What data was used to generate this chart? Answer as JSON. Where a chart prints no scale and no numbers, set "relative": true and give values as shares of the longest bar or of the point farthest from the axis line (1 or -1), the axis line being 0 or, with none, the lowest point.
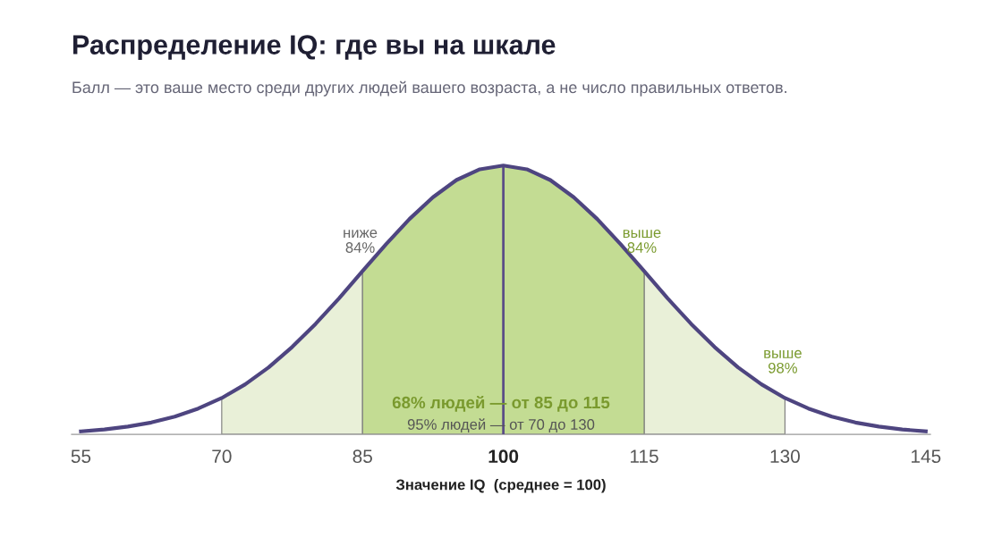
{
  "chart_data": {
    "type": "line",
    "relative": true,
    "title": "Распределение IQ: где вы на шкале",
    "subtitle": "Балл — это ваше место среди других людей вашего возраста, а не число правильных ответов.",
    "xlabel": "Значение IQ  (среднее = 100)",
    "x": [
      55,
      57.5,
      60,
      62.5,
      65,
      67.5,
      70,
      72.5,
      75,
      77.5,
      80,
      82.5,
      85,
      87.5,
      90,
      92.5,
      95,
      97.5,
      100,
      102.5,
      105,
      107.5,
      110,
      112.5,
      115,
      117.5,
      120,
      122.5,
      125,
      127.5,
      130,
      132.5,
      135,
      137.5,
      140,
      142.5,
      145
    ],
    "series": [
      {
        "type": "area",
        "color": "#e9f0d8",
        "x": [
          70,
          72.5,
          75,
          77.5,
          80,
          82.5,
          85
        ],
        "values": [
          0.135,
          0.186,
          0.249,
          0.325,
          0.411,
          0.506,
          0.607
        ]
      },
      {
        "type": "area",
        "color": "#e9f0d8",
        "x": [
          115,
          117.5,
          120,
          122.5,
          125,
          127.5,
          130
        ],
        "values": [
          0.607,
          0.506,
          0.411,
          0.325,
          0.249,
          0.186,
          0.135
        ]
      },
      {
        "type": "area",
        "color": "#c3dc93",
        "x": [
          85,
          87.5,
          90,
          92.5,
          95,
          97.5,
          100,
          102.5,
          105,
          107.5,
          110,
          112.5,
          115
        ],
        "values": [
          0.607,
          0.707,
          0.801,
          0.882,
          0.946,
          0.986,
          1,
          0.986,
          0.946,
          0.882,
          0.801,
          0.707,
          0.607
        ]
      },
      {
        "type": "line",
        "color": "#4e4580",
        "values": [
          0.011,
          0.018,
          0.029,
          0.044,
          0.066,
          0.096,
          0.135,
          0.186,
          0.249,
          0.325,
          0.411,
          0.506,
          0.607,
          0.707,
          0.801,
          0.882,
          0.946,
          0.986,
          1,
          0.986,
          0.946,
          0.882,
          0.801,
          0.707,
          0.607,
          0.506,
          0.411,
          0.325,
          0.249,
          0.186,
          0.135,
          0.096,
          0.066,
          0.044,
          0.029,
          0.018,
          0.011
        ]
      }
    ],
    "xlim": [
      54,
      145.5
    ],
    "xticks": [
      55,
      70,
      85,
      100,
      115,
      130,
      145
    ],
    "ref_lines": [
      {
        "axis": "x",
        "value": 100,
        "color": "#5b4e87"
      }
    ],
    "annotations": [
      "ниже\n84%",
      "выше\n84%",
      "выше\n98%",
      "68% людей — от 85 до 115",
      "95% людей — от 70 до 130"
    ],
    "grid": false,
    "legend": false,
    "line_style": "solid",
    "marker": "none"
  }
}
